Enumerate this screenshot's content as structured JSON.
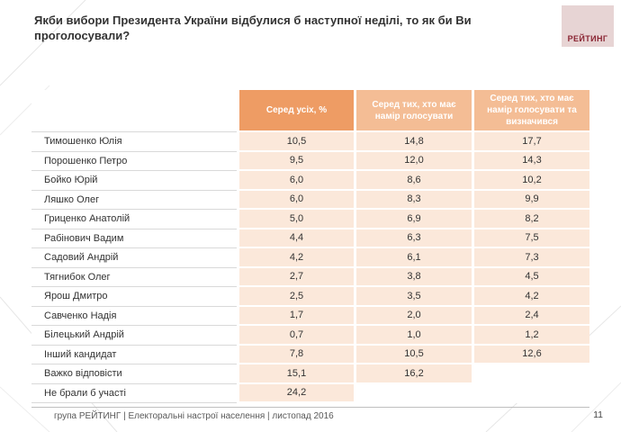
{
  "page": {
    "title": "Якби вибори Президента України відбулися б наступної неділі, то як би Ви проголосували?",
    "logo_text": "РЕЙТИНГ",
    "footer_text": "група РЕЙТИНГ |  Електоральні настрої населення  |  листопад 2016",
    "page_number": "11"
  },
  "colors": {
    "header_col1_bg": "#ee9c64",
    "header_col23_bg": "#f4bd95",
    "value_cell_bg": "#fbe8da",
    "logo_bg": "#e7d4d4",
    "logo_text_color": "#8a2432"
  },
  "chart_data": {
    "type": "table",
    "title": "Якби вибори Президента України відбулися б наступної неділі, то як би Ви проголосували?",
    "columns": [
      "Серед усіх, %",
      "Серед тих, хто має намір голосувати",
      "Серед тих, хто має намір голосувати та визначився"
    ],
    "rows": [
      {
        "name": "Тимошенко Юлія",
        "values": [
          "10,5",
          "14,8",
          "17,7"
        ]
      },
      {
        "name": "Порошенко Петро",
        "values": [
          "9,5",
          "12,0",
          "14,3"
        ]
      },
      {
        "name": "Бойко Юрій",
        "values": [
          "6,0",
          "8,6",
          "10,2"
        ]
      },
      {
        "name": "Ляшко Олег",
        "values": [
          "6,0",
          "8,3",
          "9,9"
        ]
      },
      {
        "name": "Гриценко Анатолій",
        "values": [
          "5,0",
          "6,9",
          "8,2"
        ]
      },
      {
        "name": "Рабінович Вадим",
        "values": [
          "4,4",
          "6,3",
          "7,5"
        ]
      },
      {
        "name": "Садовий Андрій",
        "values": [
          "4,2",
          "6,1",
          "7,3"
        ]
      },
      {
        "name": "Тягнибок Олег",
        "values": [
          "2,7",
          "3,8",
          "4,5"
        ]
      },
      {
        "name": "Ярош Дмитро",
        "values": [
          "2,5",
          "3,5",
          "4,2"
        ]
      },
      {
        "name": "Савченко Надія",
        "values": [
          "1,7",
          "2,0",
          "2,4"
        ]
      },
      {
        "name": "Білецький Андрій",
        "values": [
          "0,7",
          "1,0",
          "1,2"
        ]
      },
      {
        "name": "Інший кандидат",
        "values": [
          "7,8",
          "10,5",
          "12,6"
        ]
      },
      {
        "name": "Важко відповісти",
        "values": [
          "15,1",
          "16,2",
          ""
        ]
      },
      {
        "name": "Не брали б участі",
        "values": [
          "24,2",
          "",
          ""
        ]
      }
    ]
  }
}
